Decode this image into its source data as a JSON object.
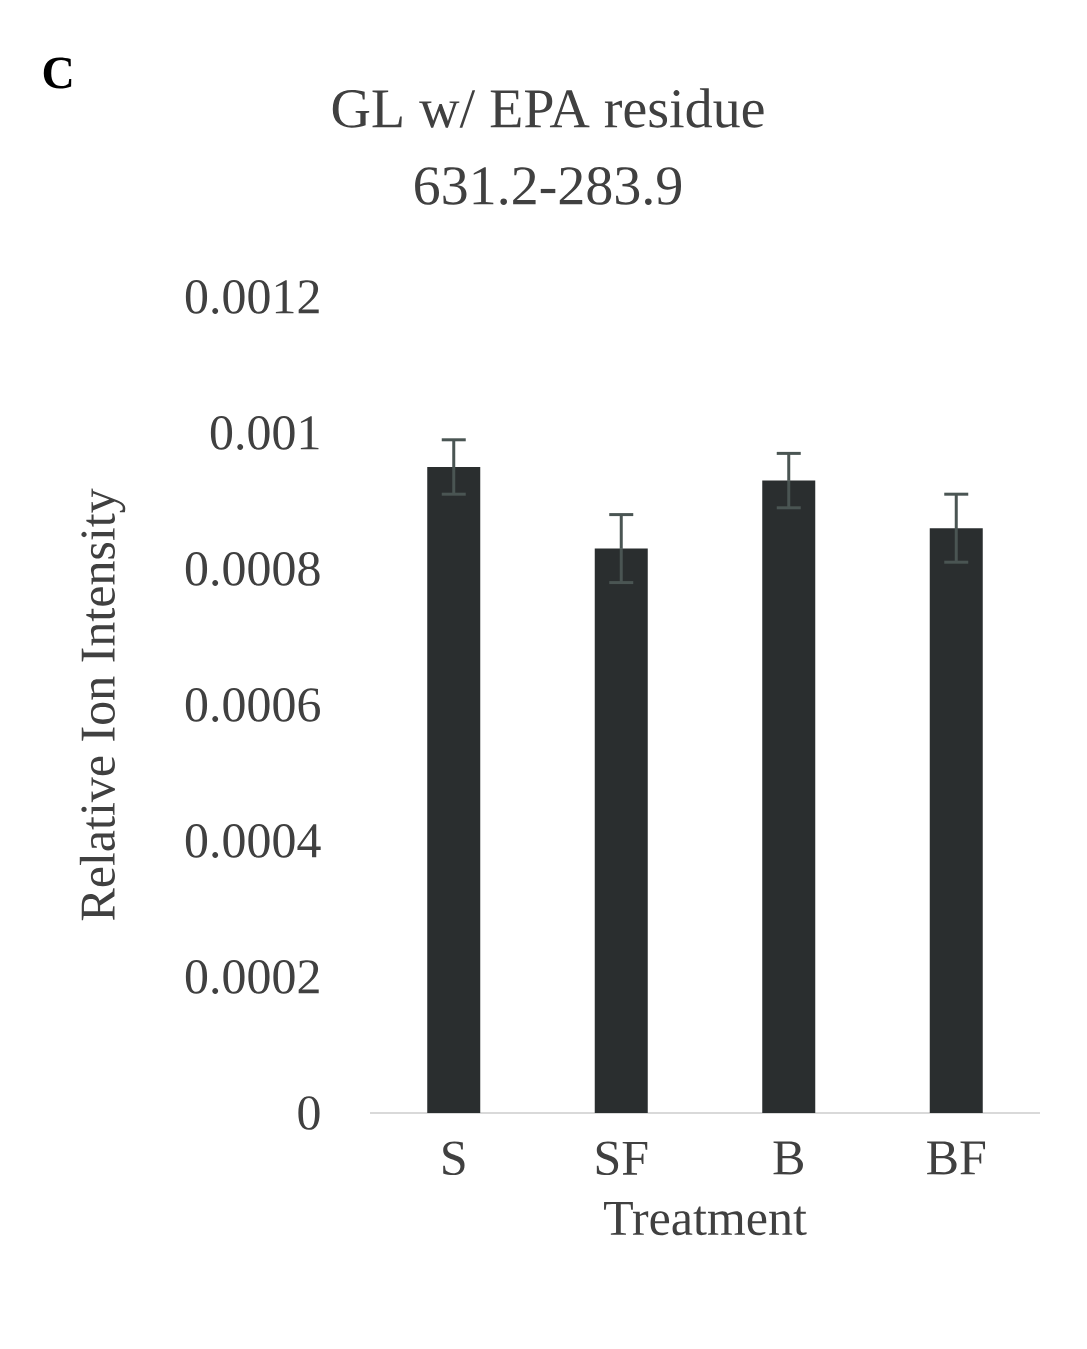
{
  "chart_data": {
    "type": "bar",
    "title": "GL w/ EPA residue",
    "subtitle": "631.2-283.9",
    "xlabel": "Treatment",
    "ylabel": "Relative Ion Intensity",
    "annotations": [
      "C"
    ],
    "categories": [
      "S",
      "SF",
      "B",
      "BF"
    ],
    "values": [
      0.00095,
      0.00083,
      0.00093,
      0.00086
    ],
    "errors": [
      4e-05,
      5e-05,
      4e-05,
      5e-05
    ],
    "color": "#2a2e2f",
    "ylim": [
      0,
      0.0012
    ],
    "yticks": [
      0,
      0.0002,
      0.0004,
      0.0006,
      0.0008,
      0.001,
      0.0012
    ]
  }
}
